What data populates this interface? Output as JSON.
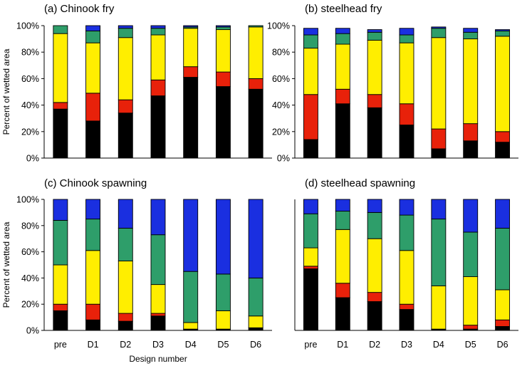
{
  "colors": {
    "black": "#000000",
    "red": "#e8210a",
    "yellow": "#ffee00",
    "green": "#2e9e6a",
    "blue": "#1a2fe0"
  },
  "ylabel": "Percent of wetted area",
  "xlabel": "Design number",
  "chart_data": [
    {
      "type": "bar",
      "stacked": true,
      "title": "(a) Chinook fry",
      "categories": [
        "pre",
        "D1",
        "D2",
        "D3",
        "D4",
        "D5",
        "D6"
      ],
      "ylim": [
        0,
        100
      ],
      "yticks": [
        "0%",
        "20%",
        "40%",
        "60%",
        "80%",
        "100%"
      ],
      "show_xticks": false,
      "show_ylabel": true,
      "show_xlabel": false,
      "series": [
        {
          "color_key": "black",
          "values": [
            37,
            28,
            34,
            47,
            61,
            54,
            52
          ]
        },
        {
          "color_key": "red",
          "values": [
            5,
            21,
            10,
            12,
            8,
            11,
            8
          ]
        },
        {
          "color_key": "yellow",
          "values": [
            52,
            38,
            47,
            34,
            29,
            32,
            39
          ]
        },
        {
          "color_key": "green",
          "values": [
            6,
            9,
            7,
            5,
            1,
            2,
            1
          ]
        },
        {
          "color_key": "blue",
          "values": [
            0,
            4,
            2,
            2,
            1,
            1,
            0
          ]
        }
      ]
    },
    {
      "type": "bar",
      "stacked": true,
      "title": "(b) steelhead fry",
      "categories": [
        "pre",
        "D1",
        "D2",
        "D3",
        "D4",
        "D5",
        "D6"
      ],
      "ylim": [
        0,
        100
      ],
      "yticks": [
        "0%",
        "20%",
        "40%",
        "60%",
        "80%",
        "100%"
      ],
      "show_xticks": false,
      "show_ylabel": false,
      "show_xlabel": false,
      "series": [
        {
          "color_key": "black",
          "values": [
            14,
            41,
            38,
            25,
            7,
            13,
            12
          ]
        },
        {
          "color_key": "red",
          "values": [
            34,
            11,
            10,
            16,
            15,
            13,
            8
          ]
        },
        {
          "color_key": "yellow",
          "values": [
            35,
            34,
            41,
            46,
            69,
            64,
            72
          ]
        },
        {
          "color_key": "green",
          "values": [
            10,
            8,
            6,
            6,
            7,
            5,
            4
          ]
        },
        {
          "color_key": "blue",
          "values": [
            5,
            4,
            2,
            5,
            1,
            3,
            1
          ]
        }
      ]
    },
    {
      "type": "bar",
      "stacked": true,
      "title": "(c) Chinook spawning",
      "categories": [
        "pre",
        "D1",
        "D2",
        "D3",
        "D4",
        "D5",
        "D6"
      ],
      "ylim": [
        0,
        100
      ],
      "yticks": [
        "0%",
        "20%",
        "40%",
        "60%",
        "80%",
        "100%"
      ],
      "show_xticks": true,
      "show_ylabel": true,
      "show_xlabel": true,
      "series": [
        {
          "color_key": "black",
          "values": [
            15,
            8,
            7,
            11,
            1,
            1,
            2
          ]
        },
        {
          "color_key": "red",
          "values": [
            5,
            12,
            6,
            2,
            0,
            0,
            0
          ]
        },
        {
          "color_key": "yellow",
          "values": [
            30,
            41,
            40,
            22,
            5,
            14,
            9
          ]
        },
        {
          "color_key": "green",
          "values": [
            34,
            24,
            25,
            38,
            39,
            28,
            29
          ]
        },
        {
          "color_key": "blue",
          "values": [
            16,
            15,
            22,
            27,
            55,
            57,
            60
          ]
        }
      ]
    },
    {
      "type": "bar",
      "stacked": true,
      "title": "(d) steelhead spawning",
      "categories": [
        "pre",
        "D1",
        "D2",
        "D3",
        "D4",
        "D5",
        "D6"
      ],
      "ylim": [
        0,
        100
      ],
      "yticks": [],
      "show_xticks": true,
      "show_ylabel": false,
      "show_xlabel": false,
      "series": [
        {
          "color_key": "black",
          "values": [
            47,
            25,
            22,
            16,
            1,
            1,
            3
          ]
        },
        {
          "color_key": "red",
          "values": [
            2,
            11,
            7,
            4,
            0,
            3,
            5
          ]
        },
        {
          "color_key": "yellow",
          "values": [
            14,
            41,
            41,
            41,
            33,
            37,
            23
          ]
        },
        {
          "color_key": "green",
          "values": [
            26,
            14,
            20,
            27,
            51,
            34,
            47
          ]
        },
        {
          "color_key": "blue",
          "values": [
            11,
            9,
            10,
            12,
            15,
            25,
            22
          ]
        }
      ]
    }
  ]
}
